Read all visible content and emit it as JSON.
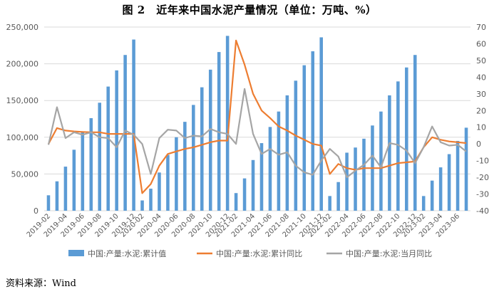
{
  "title": "图 2　近年来中国水泥产量情况（单位：万吨、%）",
  "source": "资料来源：Wind",
  "chart_data": {
    "type": "bar+line",
    "categories": [
      "2019-02",
      "2019-03",
      "2019-04",
      "2019-05",
      "2019-06",
      "2019-07",
      "2019-08",
      "2019-09",
      "2019-10",
      "2019-11",
      "2019-12",
      "2020-02",
      "2020-03",
      "2020-04",
      "2020-05",
      "2020-06",
      "2020-07",
      "2020-08",
      "2020-09",
      "2020-10",
      "2020-11",
      "2020-12",
      "2021-02",
      "2021-03",
      "2021-04",
      "2021-05",
      "2021-06",
      "2021-07",
      "2021-08",
      "2021-09",
      "2021-10",
      "2021-11",
      "2021-12",
      "2022-02",
      "2022-03",
      "2022-04",
      "2022-05",
      "2022-06",
      "2022-07",
      "2022-08",
      "2022-09",
      "2022-10",
      "2022-11",
      "2022-12",
      "2023-02",
      "2023-03",
      "2023-04",
      "2023-05",
      "2023-06",
      "2023-07"
    ],
    "x_tick_labels": [
      "2019-02",
      "2019-04",
      "2019-06",
      "2019-08",
      "2019-10",
      "2019-12",
      "2020-02",
      "2020-04",
      "2020-06",
      "2020-08",
      "2020-10",
      "2020-12",
      "2021-02",
      "2021-04",
      "2021-06",
      "2021-08",
      "2021-10",
      "2021-12",
      "2022-02",
      "2022-04",
      "2022-06",
      "2022-08",
      "2022-10",
      "2022-12",
      "2023-02",
      "2023-04",
      "2023-06"
    ],
    "y_left": {
      "min": 0,
      "max": 250000,
      "step": 50000,
      "tick_labels": [
        "0",
        "50,000",
        "100,000",
        "150,000",
        "200,000",
        "250,000"
      ]
    },
    "y_right": {
      "min": -40,
      "max": 70,
      "step": 10,
      "tick_labels": [
        "-40",
        "-30",
        "-20",
        "-10",
        "0",
        "10",
        "20",
        "30",
        "40",
        "50",
        "60",
        "70"
      ]
    },
    "grid": true,
    "legend_position": "bottom",
    "series": [
      {
        "name": "中国:产量:水泥:累计值",
        "type": "bar",
        "axis": "left",
        "color": "#5b9bd5",
        "values": [
          21000,
          40000,
          60000,
          83000,
          107000,
          126000,
          147000,
          169000,
          191000,
          212000,
          233000,
          14000,
          30000,
          52000,
          76000,
          100000,
          121000,
          144000,
          168000,
          192000,
          216000,
          238000,
          24000,
          44000,
          69000,
          92000,
          114000,
          135000,
          157000,
          177000,
          198000,
          217000,
          236000,
          20000,
          39000,
          79000,
          86000,
          98000,
          116000,
          135000,
          157000,
          176000,
          195000,
          212000,
          20000,
          41000,
          59000,
          77000,
          95000,
          113000
        ]
      },
      {
        "name": "中国:产量:水泥:累计同比",
        "type": "line",
        "axis": "right",
        "color": "#ed7d31",
        "values": [
          0,
          9.5,
          8,
          7.5,
          7.2,
          7,
          7,
          6,
          6,
          6,
          6,
          -29.5,
          -24,
          -13,
          -6,
          -4.5,
          -3,
          -2,
          -0.5,
          1,
          2,
          2,
          62,
          47.5,
          30,
          20,
          15.5,
          10.5,
          8,
          5,
          2.5,
          0,
          -1,
          -18,
          -12,
          -14.5,
          -15.5,
          -14.5,
          -14.5,
          -14.5,
          -13,
          -11.5,
          -11,
          -10.5,
          -2,
          4,
          2.5,
          1.5,
          1,
          0.5
        ]
      },
      {
        "name": "中国:产量:水泥:当月同比",
        "type": "line",
        "axis": "right",
        "color": "#a5a5a5",
        "values": [
          -0.5,
          22,
          3.5,
          7,
          5.5,
          7,
          4,
          3.5,
          -2,
          8,
          5.5,
          0,
          -18,
          3.5,
          8.5,
          8,
          3.5,
          5,
          4.5,
          9,
          7,
          6,
          0,
          33,
          6,
          -6,
          -3,
          -6.5,
          -5,
          -13,
          -17,
          -18.5,
          -10,
          -3,
          -7.5,
          -20,
          -16,
          -12.5,
          -7,
          -14,
          0.5,
          -0.5,
          -4,
          -11.5,
          -2,
          10.5,
          1,
          -1,
          -0.5,
          -4.5
        ]
      }
    ]
  }
}
